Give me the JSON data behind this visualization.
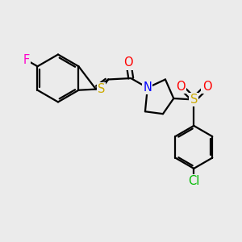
{
  "bg_color": "#ebebeb",
  "atom_colors": {
    "F": "#ff00cc",
    "S_thio": "#ccaa00",
    "N": "#0000ff",
    "O": "#ff0000",
    "S_sulf": "#ccaa00",
    "Cl": "#00bb00",
    "C": "#000000"
  },
  "lw": 1.6,
  "font_size": 10.5
}
